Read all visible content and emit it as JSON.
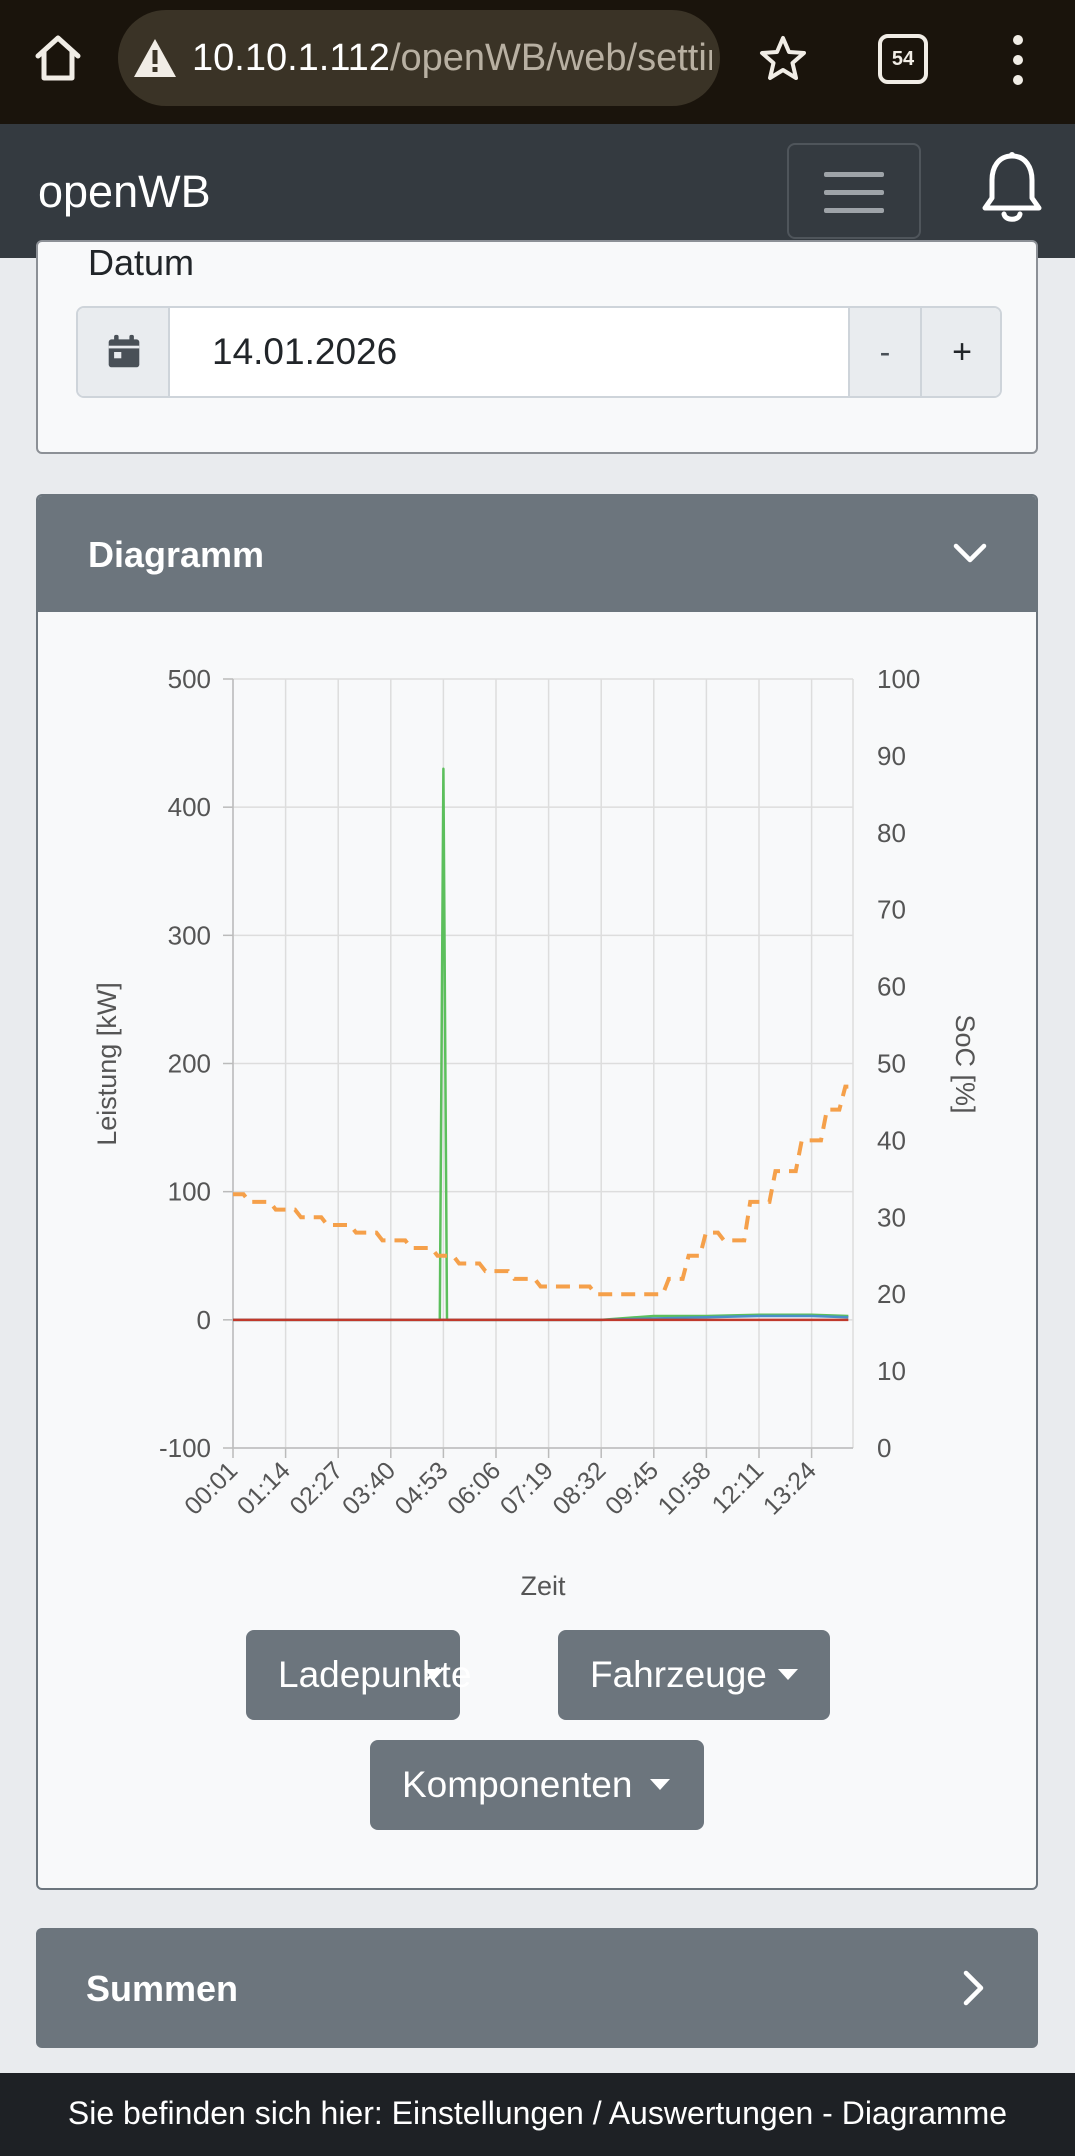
{
  "browser": {
    "url_host": "10.10.1.112",
    "url_path": "/openWB/web/settin",
    "tab_count": "54",
    "icons": [
      "home-icon",
      "warning-icon",
      "star-icon",
      "tabs-icon",
      "more-vert-icon"
    ]
  },
  "navbar": {
    "brand": "openWB",
    "icons": [
      "hamburger-icon",
      "bell-icon"
    ]
  },
  "date_card": {
    "label": "Datum",
    "value": "14.01.2026",
    "minus_label": "-",
    "plus_label": "+",
    "icon": "calendar-icon"
  },
  "diagram": {
    "title": "Diagramm",
    "buttons": {
      "ladepunkte": "Ladepunkte",
      "fahrzeuge": "Fahrzeuge",
      "komponenten": "Komponenten"
    }
  },
  "chart_data": {
    "type": "line",
    "xlabel": "Zeit",
    "ylabel": "Leistung [kW]",
    "y2label": "SoC [%]",
    "ylim": [
      -100,
      500
    ],
    "y2lim": [
      0,
      100
    ],
    "yticks": [
      500,
      400,
      300,
      200,
      100,
      0,
      -100
    ],
    "y2ticks": [
      100,
      90,
      80,
      70,
      60,
      50,
      40,
      30,
      20,
      10,
      0
    ],
    "xticks": [
      "00:01",
      "01:14",
      "02:27",
      "03:40",
      "04:53",
      "06:06",
      "07:19",
      "08:32",
      "09:45",
      "10:58",
      "12:11",
      "13:24"
    ],
    "grid": true,
    "series": [
      {
        "axis": "left",
        "color": "#5cbf5c",
        "style": "solid",
        "x": [
          "00:01",
          "04:48",
          "04:53",
          "04:58",
          "08:32",
          "09:45",
          "10:58",
          "12:11",
          "13:24",
          "14:15"
        ],
        "values": [
          0,
          0,
          430,
          0,
          0,
          3,
          3,
          4,
          4,
          3
        ]
      },
      {
        "axis": "left",
        "color": "#4a90c8",
        "style": "solid",
        "x": [
          "00:01",
          "08:32",
          "09:45",
          "10:58",
          "12:11",
          "13:24",
          "14:15"
        ],
        "values": [
          0,
          0,
          1,
          2,
          3,
          3,
          2
        ]
      },
      {
        "axis": "left",
        "color": "#c0392b",
        "style": "solid",
        "x": [
          "00:01",
          "14:15"
        ],
        "values": [
          0,
          0
        ]
      },
      {
        "axis": "right",
        "color": "#f5a04a",
        "style": "dashed",
        "x": [
          "00:01",
          "00:30",
          "01:14",
          "01:40",
          "02:27",
          "03:00",
          "03:40",
          "04:20",
          "04:53",
          "05:20",
          "06:06",
          "06:40",
          "07:19",
          "08:00",
          "08:32",
          "09:10",
          "09:45",
          "10:10",
          "10:40",
          "10:58",
          "11:30",
          "12:11",
          "12:40",
          "13:24",
          "13:50",
          "14:15"
        ],
        "values": [
          33,
          32,
          31,
          30,
          29,
          28,
          27,
          26,
          25,
          24,
          23,
          22,
          21,
          21,
          20,
          20,
          20,
          22,
          25,
          28,
          27,
          32,
          36,
          40,
          44,
          47
        ]
      }
    ]
  },
  "summen": {
    "title": "Summen",
    "icon": "chevron-right-icon"
  },
  "footer": {
    "text": "Sie befinden sich hier: Einstellungen / Auswertungen - Diagramme"
  }
}
